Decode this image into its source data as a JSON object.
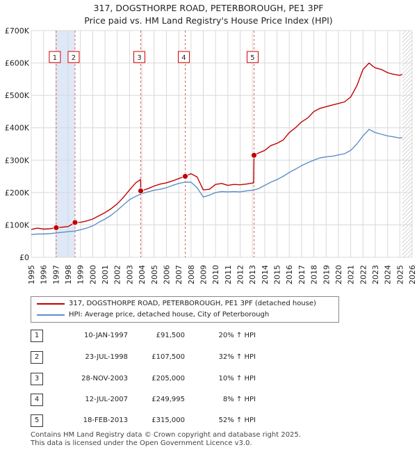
{
  "header": {
    "title_line1": "317, DOGSTHORPE ROAD, PETERBOROUGH, PE1 3PF",
    "title_line2": "Price paid vs. HM Land Registry's House Price Index (HPI)"
  },
  "colors": {
    "property": "#c00000",
    "hpi": "#5b8fc9",
    "shade": "#dfe8f7",
    "hatch": "#aaaaaa",
    "vline": "#e06060",
    "grid": "#d8d8d8",
    "marker_border": "#cc0000"
  },
  "chart_data": {
    "type": "line",
    "title": "317, DOGSTHORPE ROAD, PETERBOROUGH, PE1 3PF",
    "subtitle": "Price paid vs. HM Land Registry's House Price Index (HPI)",
    "xlabel": "",
    "ylabel": "",
    "xlim": [
      1995,
      2026
    ],
    "ylim": [
      0,
      700000
    ],
    "yticks": [
      0,
      100000,
      200000,
      300000,
      400000,
      500000,
      600000,
      700000
    ],
    "ytick_labels": [
      "£0",
      "£100K",
      "£200K",
      "£300K",
      "£400K",
      "£500K",
      "£600K",
      "£700K"
    ],
    "xticks": [
      "1995",
      "1996",
      "1997",
      "1998",
      "1999",
      "2000",
      "2001",
      "2002",
      "2003",
      "2004",
      "2005",
      "2006",
      "2007",
      "2008",
      "2009",
      "2010",
      "2011",
      "2012",
      "2013",
      "2014",
      "2015",
      "2016",
      "2017",
      "2018",
      "2019",
      "2020",
      "2021",
      "2022",
      "2023",
      "2024",
      "2025",
      "2026"
    ],
    "data_end": 2025.2,
    "shaded_ranges": [
      [
        1997.03,
        1998.56
      ],
      [
        2025.2,
        2026
      ]
    ],
    "grid": true,
    "series": [
      {
        "name": "317, DOGSTHORPE ROAD, PETERBOROUGH, PE1 3PF (detached house)",
        "x": [
          1995.0,
          1995.5,
          1996.0,
          1996.5,
          1997.03,
          1997.5,
          1998.0,
          1998.56,
          1999.0,
          1999.5,
          2000.0,
          2000.5,
          2001.0,
          2001.5,
          2002.0,
          2002.5,
          2003.0,
          2003.5,
          2003.9,
          2003.91,
          2004.5,
          2005.0,
          2005.5,
          2006.0,
          2006.5,
          2007.0,
          2007.53,
          2008.0,
          2008.5,
          2009.0,
          2009.5,
          2010.0,
          2010.5,
          2011.0,
          2011.5,
          2012.0,
          2012.5,
          2013.1,
          2013.13,
          2013.5,
          2014.0,
          2014.5,
          2015.0,
          2015.5,
          2016.0,
          2016.5,
          2017.0,
          2017.5,
          2018.0,
          2018.5,
          2019.0,
          2019.5,
          2020.0,
          2020.5,
          2021.0,
          2021.5,
          2022.0,
          2022.5,
          2022.8,
          2023.0,
          2023.5,
          2024.0,
          2024.5,
          2025.0,
          2025.2
        ],
        "y": [
          86000,
          90000,
          87000,
          88000,
          91500,
          93000,
          95000,
          107500,
          108000,
          112000,
          118000,
          128000,
          138000,
          150000,
          165000,
          185000,
          208000,
          230000,
          240000,
          205000,
          212000,
          220000,
          226000,
          230000,
          236000,
          243000,
          249995,
          258000,
          248000,
          208000,
          210000,
          225000,
          228000,
          222000,
          225000,
          224000,
          226000,
          230000,
          315000,
          322000,
          330000,
          345000,
          352000,
          362000,
          385000,
          400000,
          418000,
          430000,
          450000,
          460000,
          465000,
          470000,
          475000,
          480000,
          495000,
          530000,
          580000,
          600000,
          590000,
          585000,
          580000,
          570000,
          565000,
          562000,
          565000
        ]
      },
      {
        "name": "HPI: Average price, detached house, City of Peterborough",
        "x": [
          1995.0,
          1995.5,
          1996.0,
          1996.5,
          1997.0,
          1997.5,
          1998.0,
          1998.5,
          1999.0,
          1999.5,
          2000.0,
          2000.5,
          2001.0,
          2001.5,
          2002.0,
          2002.5,
          2003.0,
          2003.5,
          2004.0,
          2004.5,
          2005.0,
          2005.5,
          2006.0,
          2006.5,
          2007.0,
          2007.5,
          2008.0,
          2008.5,
          2009.0,
          2009.5,
          2010.0,
          2010.5,
          2011.0,
          2011.5,
          2012.0,
          2012.5,
          2013.0,
          2013.5,
          2014.0,
          2014.5,
          2015.0,
          2015.5,
          2016.0,
          2016.5,
          2017.0,
          2017.5,
          2018.0,
          2018.5,
          2019.0,
          2019.5,
          2020.0,
          2020.5,
          2021.0,
          2021.5,
          2022.0,
          2022.5,
          2023.0,
          2023.5,
          2024.0,
          2024.5,
          2025.0,
          2025.2
        ],
        "y": [
          70000,
          72000,
          72000,
          73000,
          75000,
          77000,
          79000,
          81000,
          85000,
          90000,
          97000,
          108000,
          118000,
          130000,
          145000,
          162000,
          178000,
          188000,
          197000,
          202000,
          207000,
          210000,
          215000,
          222000,
          228000,
          232000,
          232000,
          215000,
          186000,
          192000,
          200000,
          203000,
          202000,
          203000,
          202000,
          205000,
          207000,
          212000,
          222000,
          232000,
          240000,
          250000,
          262000,
          272000,
          283000,
          292000,
          300000,
          307000,
          310000,
          312000,
          316000,
          320000,
          330000,
          350000,
          375000,
          395000,
          385000,
          380000,
          375000,
          372000,
          368000,
          370000
        ]
      }
    ],
    "markers": [
      {
        "label": "1",
        "x": 1997.03,
        "y": 91500
      },
      {
        "label": "2",
        "x": 1998.56,
        "y": 107500
      },
      {
        "label": "3",
        "x": 2003.91,
        "y": 205000
      },
      {
        "label": "4",
        "x": 2007.53,
        "y": 249995
      },
      {
        "label": "5",
        "x": 2013.13,
        "y": 315000
      }
    ]
  },
  "legend": {
    "property_label": "317, DOGSTHORPE ROAD, PETERBOROUGH, PE1 3PF (detached house)",
    "hpi_label": "HPI: Average price, detached house, City of Peterborough"
  },
  "transactions": [
    {
      "num": "1",
      "date": "10-JAN-1997",
      "price": "£91,500",
      "hpi": "20% ↑ HPI"
    },
    {
      "num": "2",
      "date": "23-JUL-1998",
      "price": "£107,500",
      "hpi": "32% ↑ HPI"
    },
    {
      "num": "3",
      "date": "28-NOV-2003",
      "price": "£205,000",
      "hpi": "10% ↑ HPI"
    },
    {
      "num": "4",
      "date": "12-JUL-2007",
      "price": "£249,995",
      "hpi": "8% ↑ HPI"
    },
    {
      "num": "5",
      "date": "18-FEB-2013",
      "price": "£315,000",
      "hpi": "52% ↑ HPI"
    }
  ],
  "footer": {
    "line1": "Contains HM Land Registry data © Crown copyright and database right 2025.",
    "line2": "This data is licensed under the Open Government Licence v3.0."
  }
}
